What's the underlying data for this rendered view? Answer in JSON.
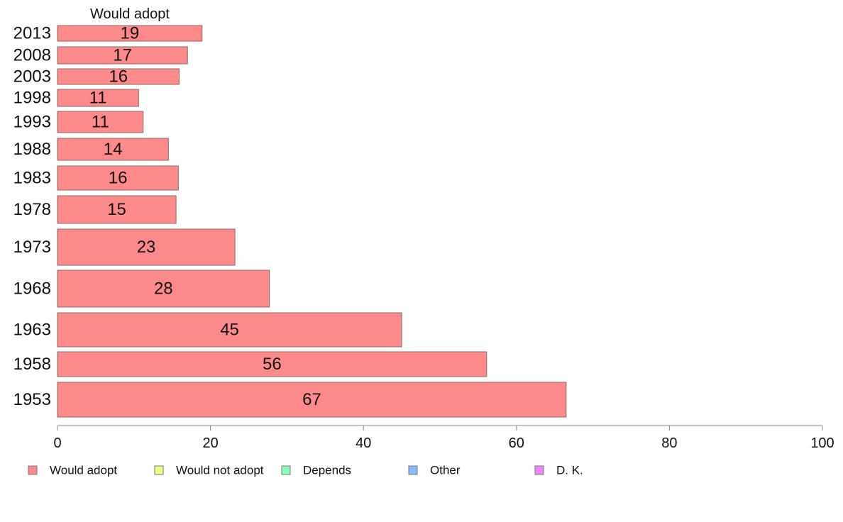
{
  "chart_data": {
    "type": "bar",
    "orientation": "horizontal",
    "series_title": "Would adopt",
    "categories": [
      "2013",
      "2008",
      "2003",
      "1998",
      "1993",
      "1988",
      "1983",
      "1978",
      "1973",
      "1968",
      "1963",
      "1958",
      "1953"
    ],
    "values": [
      19,
      17,
      16,
      11,
      11,
      14,
      16,
      15,
      23,
      28,
      45,
      56,
      67
    ],
    "bar_values": [
      18.9,
      17.0,
      15.9,
      10.6,
      11.2,
      14.5,
      15.8,
      15.5,
      23.2,
      27.7,
      45.0,
      56.1,
      66.5
    ],
    "xlim": [
      0,
      100
    ],
    "xticks": [
      0,
      20,
      40,
      60,
      80,
      100
    ],
    "grid": false,
    "legend_position": "bottom",
    "legend": [
      {
        "name": "Would adopt",
        "color": "#ff8a8a"
      },
      {
        "name": "Would not adopt",
        "color": "#eeff88"
      },
      {
        "name": "Depends",
        "color": "#88ffbb"
      },
      {
        "name": "Other",
        "color": "#88bbff"
      },
      {
        "name": "D. K.",
        "color": "#ee88ff"
      }
    ],
    "bar_color": "#ff8a8a",
    "bar_stroke": "#8a6a6a"
  }
}
